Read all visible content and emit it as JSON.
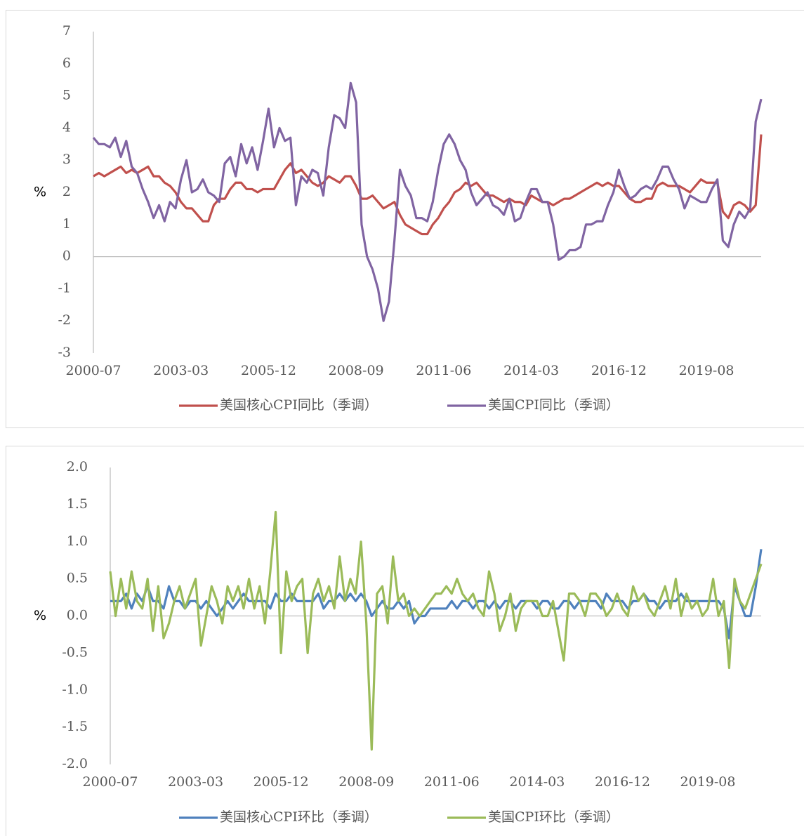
{
  "chart_data": [
    {
      "type": "line",
      "y_label": "%",
      "categories": [
        "2000-07",
        null,
        null,
        null,
        null,
        null,
        null,
        null,
        null,
        null,
        null,
        null,
        null,
        null,
        null,
        null,
        "2003-03",
        null,
        null,
        null,
        null,
        null,
        null,
        null,
        null,
        null,
        null,
        null,
        null,
        null,
        null,
        null,
        "2005-12",
        null,
        null,
        null,
        null,
        null,
        null,
        null,
        null,
        null,
        null,
        null,
        null,
        null,
        null,
        null,
        "2008-09",
        null,
        null,
        null,
        null,
        null,
        null,
        null,
        null,
        null,
        null,
        null,
        null,
        null,
        null,
        null,
        "2011-06",
        null,
        null,
        null,
        null,
        null,
        null,
        null,
        null,
        null,
        null,
        null,
        null,
        null,
        null,
        null,
        "2014-03",
        null,
        null,
        null,
        null,
        null,
        null,
        null,
        null,
        null,
        null,
        null,
        null,
        null,
        null,
        null,
        "2016-12",
        null,
        null,
        null,
        null,
        null,
        null,
        null,
        null,
        null,
        null,
        null,
        null,
        null,
        null,
        null,
        "2019-08",
        null,
        null,
        null,
        null,
        null,
        null,
        null,
        null,
        null,
        null
      ],
      "ylim": [
        -3,
        7
      ],
      "yticks": [
        -3,
        -2,
        -1,
        0,
        1,
        2,
        3,
        4,
        5,
        6,
        7
      ],
      "series": [
        {
          "name": "美国核心CPI同比（季调）",
          "color": "#c0504d",
          "values": [
            2.5,
            2.6,
            2.5,
            2.6,
            2.7,
            2.8,
            2.6,
            2.7,
            2.6,
            2.7,
            2.8,
            2.5,
            2.5,
            2.3,
            2.2,
            2.0,
            1.7,
            1.5,
            1.5,
            1.3,
            1.1,
            1.1,
            1.6,
            1.8,
            1.8,
            2.1,
            2.3,
            2.3,
            2.1,
            2.1,
            2.0,
            2.1,
            2.1,
            2.1,
            2.4,
            2.7,
            2.9,
            2.6,
            2.7,
            2.5,
            2.3,
            2.2,
            2.3,
            2.5,
            2.4,
            2.3,
            2.5,
            2.5,
            2.2,
            1.8,
            1.8,
            1.9,
            1.7,
            1.5,
            1.6,
            1.7,
            1.3,
            1.0,
            0.9,
            0.8,
            0.7,
            0.7,
            1.0,
            1.2,
            1.5,
            1.7,
            2.0,
            2.1,
            2.3,
            2.2,
            2.3,
            2.1,
            1.9,
            1.9,
            1.8,
            1.7,
            1.8,
            1.7,
            1.7,
            1.6,
            1.9,
            1.8,
            1.7,
            1.7,
            1.6,
            1.7,
            1.8,
            1.8,
            1.9,
            2.0,
            2.1,
            2.2,
            2.3,
            2.2,
            2.3,
            2.2,
            2.2,
            2.0,
            1.8,
            1.7,
            1.7,
            1.8,
            1.8,
            2.2,
            2.3,
            2.2,
            2.2,
            2.2,
            2.1,
            2.0,
            2.2,
            2.4,
            2.3,
            2.3,
            2.3,
            1.4,
            1.2,
            1.6,
            1.7,
            1.6,
            1.4,
            1.6,
            3.8
          ]
        },
        {
          "name": "美国CPI同比（季调）",
          "color": "#8064a2",
          "values": [
            3.7,
            3.5,
            3.5,
            3.4,
            3.7,
            3.1,
            3.6,
            2.8,
            2.6,
            2.1,
            1.7,
            1.2,
            1.6,
            1.1,
            1.7,
            1.5,
            2.4,
            3.0,
            2.0,
            2.1,
            2.4,
            2.0,
            1.9,
            1.7,
            2.9,
            3.1,
            2.5,
            3.5,
            2.9,
            3.4,
            2.7,
            3.6,
            4.6,
            3.4,
            4.0,
            3.6,
            3.7,
            1.6,
            2.5,
            2.3,
            2.7,
            2.6,
            1.9,
            3.4,
            4.4,
            4.3,
            4.0,
            5.4,
            4.8,
            1.0,
            0.0,
            -0.4,
            -1.0,
            -2.0,
            -1.4,
            0.5,
            2.7,
            2.2,
            1.9,
            1.2,
            1.2,
            1.1,
            1.7,
            2.7,
            3.5,
            3.8,
            3.5,
            3.0,
            2.7,
            2.0,
            1.6,
            1.8,
            2.0,
            1.6,
            1.5,
            1.3,
            1.8,
            1.1,
            1.2,
            1.7,
            2.1,
            2.1,
            1.7,
            1.7,
            1.0,
            -0.1,
            0.0,
            0.2,
            0.2,
            0.3,
            1.0,
            1.0,
            1.1,
            1.1,
            1.6,
            2.0,
            2.7,
            2.2,
            1.8,
            1.9,
            2.1,
            2.2,
            2.1,
            2.4,
            2.8,
            2.8,
            2.4,
            2.1,
            1.5,
            1.9,
            1.8,
            1.7,
            1.7,
            2.1,
            2.4,
            0.5,
            0.3,
            1.0,
            1.4,
            1.2,
            1.5,
            4.2,
            4.9
          ]
        }
      ]
    },
    {
      "type": "line",
      "y_label": "%",
      "categories": [
        "2000-07",
        null,
        null,
        null,
        null,
        null,
        null,
        null,
        null,
        null,
        null,
        null,
        null,
        null,
        null,
        null,
        "2003-03",
        null,
        null,
        null,
        null,
        null,
        null,
        null,
        null,
        null,
        null,
        null,
        null,
        null,
        null,
        null,
        "2005-12",
        null,
        null,
        null,
        null,
        null,
        null,
        null,
        null,
        null,
        null,
        null,
        null,
        null,
        null,
        null,
        "2008-09",
        null,
        null,
        null,
        null,
        null,
        null,
        null,
        null,
        null,
        null,
        null,
        null,
        null,
        null,
        null,
        "2011-06",
        null,
        null,
        null,
        null,
        null,
        null,
        null,
        null,
        null,
        null,
        null,
        null,
        null,
        null,
        null,
        "2014-03",
        null,
        null,
        null,
        null,
        null,
        null,
        null,
        null,
        null,
        null,
        null,
        null,
        null,
        null,
        null,
        "2016-12",
        null,
        null,
        null,
        null,
        null,
        null,
        null,
        null,
        null,
        null,
        null,
        null,
        null,
        null,
        null,
        "2019-08",
        null,
        null,
        null,
        null,
        null,
        null,
        null,
        null,
        null,
        null
      ],
      "ylim": [
        -2,
        2
      ],
      "yticks": [
        {
          "value": -2,
          "label": "-2.0"
        },
        {
          "value": -1.5,
          "label": "-1.5"
        },
        {
          "value": -1,
          "label": "-1.0"
        },
        {
          "value": -0.5,
          "label": "-0.5"
        },
        {
          "value": 0,
          "label": "0.0"
        },
        {
          "value": 0.5,
          "label": "0.5"
        },
        {
          "value": 1,
          "label": "1.0"
        },
        {
          "value": 1.5,
          "label": "1.5"
        },
        {
          "value": 2,
          "label": "2.0"
        }
      ],
      "series": [
        {
          "name": "美国核心CPI环比（季调）",
          "color": "#4f81bd",
          "values": [
            0.2,
            0.2,
            0.2,
            0.3,
            0.1,
            0.3,
            0.2,
            0.4,
            0.2,
            0.2,
            0.1,
            0.4,
            0.2,
            0.2,
            0.1,
            0.2,
            0.2,
            0.1,
            0.2,
            0.1,
            0.0,
            0.1,
            0.2,
            0.1,
            0.2,
            0.3,
            0.2,
            0.2,
            0.2,
            0.2,
            0.1,
            0.3,
            0.2,
            0.2,
            0.3,
            0.2,
            0.2,
            0.2,
            0.2,
            0.3,
            0.1,
            0.2,
            0.2,
            0.3,
            0.2,
            0.3,
            0.2,
            0.3,
            0.2,
            0.0,
            0.1,
            0.2,
            0.1,
            0.1,
            0.2,
            0.1,
            0.2,
            -0.1,
            0.0,
            0.0,
            0.1,
            0.1,
            0.1,
            0.1,
            0.2,
            0.1,
            0.2,
            0.2,
            0.1,
            0.2,
            0.2,
            0.1,
            0.2,
            0.1,
            0.2,
            0.2,
            0.1,
            0.2,
            0.2,
            0.2,
            0.1,
            0.2,
            0.2,
            0.1,
            0.1,
            0.2,
            0.2,
            0.1,
            0.2,
            0.2,
            0.2,
            0.2,
            0.1,
            0.3,
            0.2,
            0.2,
            0.2,
            0.1,
            0.2,
            0.2,
            0.3,
            0.2,
            0.2,
            0.1,
            0.2,
            0.2,
            0.2,
            0.3,
            0.2,
            0.2,
            0.2,
            0.2,
            0.2,
            0.2,
            0.2,
            0.1,
            -0.3,
            0.4,
            0.2,
            0.0,
            0.0,
            0.4,
            0.9
          ]
        },
        {
          "name": "美国CPI环比（季调）",
          "color": "#9bbb59",
          "values": [
            0.6,
            0.0,
            0.5,
            0.1,
            0.6,
            0.2,
            0.1,
            0.5,
            -0.2,
            0.4,
            -0.3,
            -0.1,
            0.2,
            0.4,
            0.1,
            0.3,
            0.5,
            -0.4,
            0.0,
            0.4,
            0.2,
            -0.1,
            0.4,
            0.2,
            0.4,
            0.1,
            0.5,
            0.1,
            0.4,
            -0.1,
            0.6,
            1.4,
            -0.5,
            0.6,
            0.2,
            0.4,
            0.5,
            -0.5,
            0.3,
            0.5,
            0.2,
            0.4,
            0.1,
            0.8,
            0.2,
            0.5,
            0.3,
            1.0,
            -0.1,
            -1.8,
            0.3,
            0.4,
            -0.1,
            0.8,
            0.2,
            0.3,
            0.0,
            0.1,
            0.0,
            0.1,
            0.2,
            0.3,
            0.3,
            0.4,
            0.3,
            0.5,
            0.3,
            0.2,
            0.3,
            0.1,
            0.0,
            0.6,
            0.3,
            -0.2,
            0.0,
            0.3,
            -0.2,
            0.1,
            0.2,
            0.2,
            0.2,
            0.0,
            0.0,
            0.2,
            -0.2,
            -0.6,
            0.3,
            0.3,
            0.2,
            0.0,
            0.3,
            0.3,
            0.2,
            0.0,
            0.1,
            0.3,
            0.1,
            0.0,
            0.4,
            0.2,
            0.3,
            0.1,
            0.0,
            0.2,
            0.4,
            0.1,
            0.5,
            0.0,
            0.3,
            0.1,
            0.2,
            0.0,
            0.1,
            0.5,
            0.0,
            0.2,
            -0.7,
            0.5,
            0.2,
            0.1,
            0.3,
            0.5,
            0.7
          ]
        }
      ]
    }
  ]
}
